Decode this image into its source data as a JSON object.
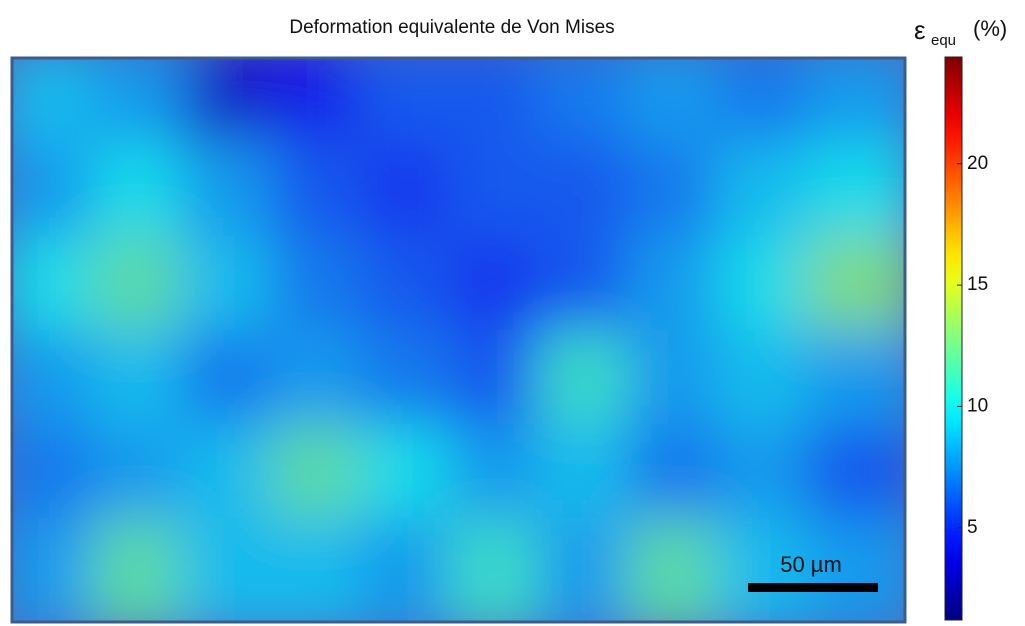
{
  "chart_data": {
    "type": "heatmap",
    "title": "Deformation equivalente de Von Mises",
    "colorbar_label": {
      "symbol": "ε",
      "subscript": "equ",
      "unit": "(%)"
    },
    "colormap": "jet",
    "clim": [
      1.2,
      24.4
    ],
    "cticks": [
      5,
      10,
      15,
      20
    ],
    "scale_bar": "50 µm",
    "values": [
      [
        9,
        8,
        3,
        4,
        6,
        6,
        7,
        8,
        7,
        8
      ],
      [
        8,
        10,
        8,
        6,
        5,
        6,
        6,
        7,
        9,
        10
      ],
      [
        10,
        12,
        9,
        7,
        6,
        5,
        6,
        8,
        10,
        13
      ],
      [
        8,
        9,
        7,
        8,
        7,
        6,
        11,
        8,
        9,
        8
      ],
      [
        7,
        8,
        9,
        12,
        10,
        8,
        9,
        7,
        8,
        6
      ],
      [
        8,
        12,
        9,
        9,
        8,
        11,
        8,
        12,
        9,
        8
      ]
    ]
  }
}
